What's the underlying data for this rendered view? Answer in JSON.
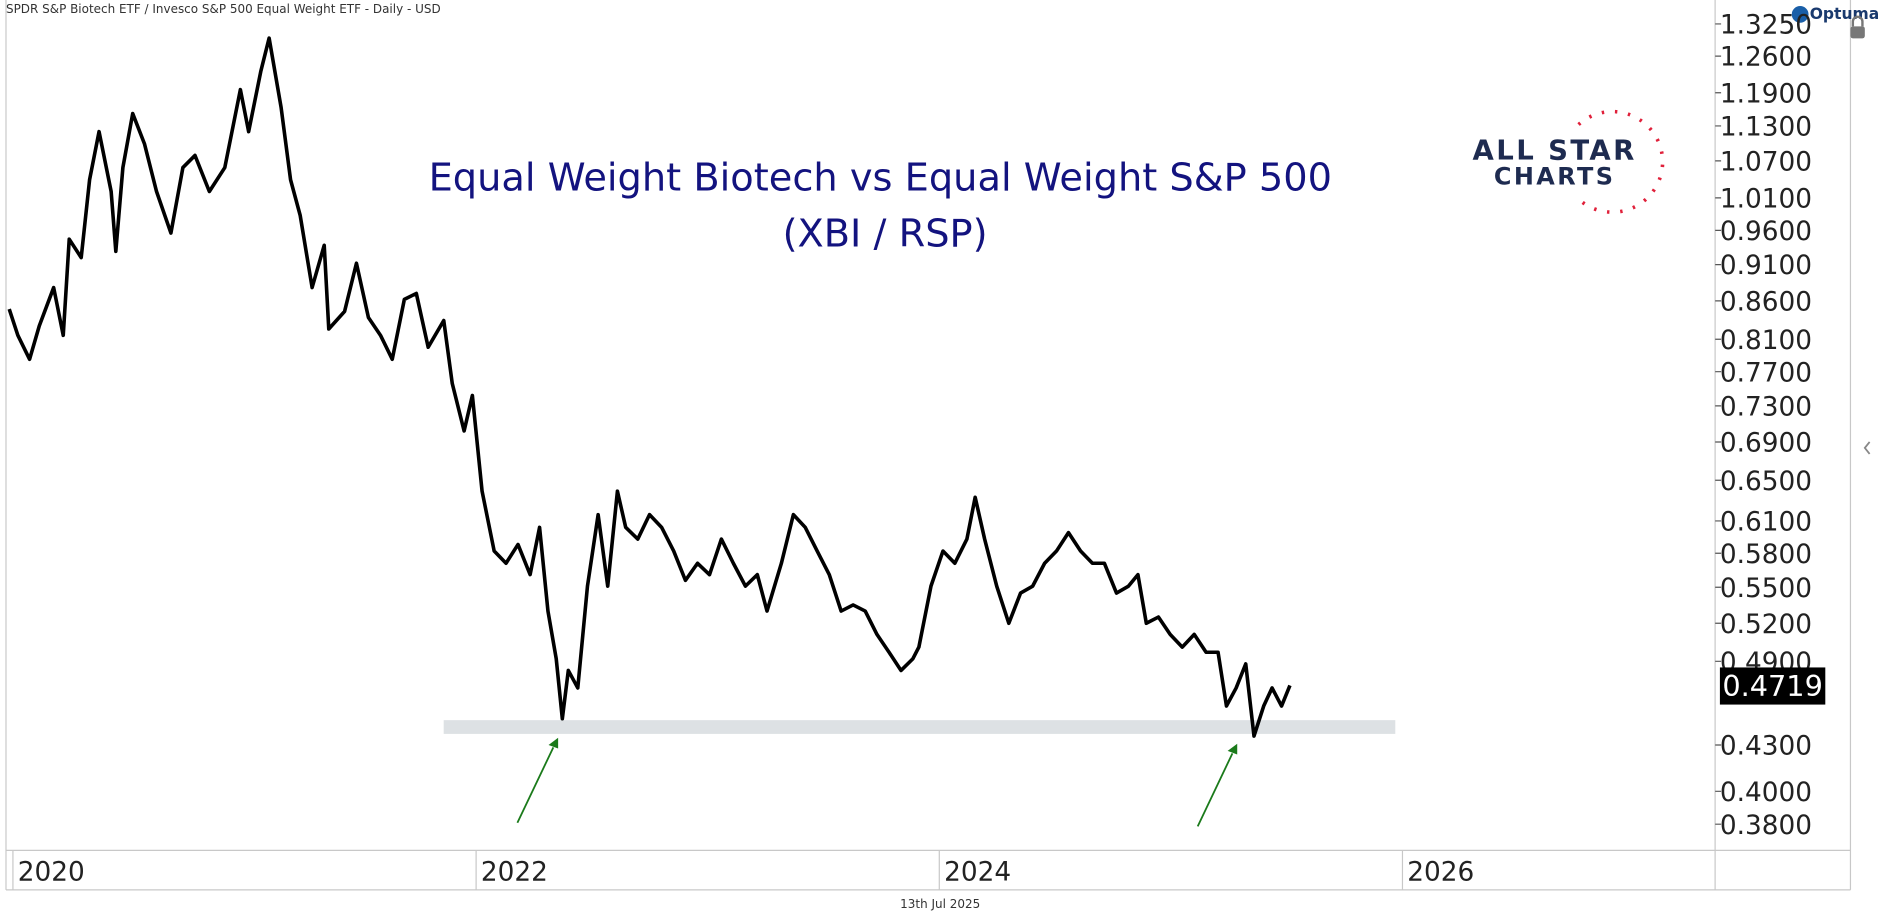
{
  "chart_data": {
    "type": "line",
    "source_text": "SPDR S&P Biotech ETF / Invesco S&P 500 Equal Weight ETF - Daily - USD",
    "brand": "Optuma",
    "title": "Equal Weight Biotech vs Equal Weight S&P 500",
    "subtitle": "(XBI / RSP)",
    "logo_lines": [
      "ALL STAR",
      "CHARTS"
    ],
    "date_label": "13th Jul 2025",
    "log_scale": true,
    "grid": false,
    "xlim": [
      2019.97,
      2027.35
    ],
    "xticks": [
      2020,
      2022,
      2024,
      2026
    ],
    "ylim": [
      0.3648,
      1.355
    ],
    "yticks": [
      {
        "value": 1.325,
        "label": "1.3250"
      },
      {
        "value": 1.26,
        "label": "1.2600"
      },
      {
        "value": 1.19,
        "label": "1.1900"
      },
      {
        "value": 1.13,
        "label": "1.1300"
      },
      {
        "value": 1.07,
        "label": "1.0700"
      },
      {
        "value": 1.01,
        "label": "1.0100"
      },
      {
        "value": 0.96,
        "label": "0.9600"
      },
      {
        "value": 0.91,
        "label": "0.9100"
      },
      {
        "value": 0.86,
        "label": "0.8600"
      },
      {
        "value": 0.81,
        "label": "0.8100"
      },
      {
        "value": 0.77,
        "label": "0.7700"
      },
      {
        "value": 0.73,
        "label": "0.7300"
      },
      {
        "value": 0.69,
        "label": "0.6900"
      },
      {
        "value": 0.65,
        "label": "0.6500"
      },
      {
        "value": 0.61,
        "label": "0.6100"
      },
      {
        "value": 0.58,
        "label": "0.5800"
      },
      {
        "value": 0.55,
        "label": "0.5500"
      },
      {
        "value": 0.52,
        "label": "0.5200"
      },
      {
        "value": 0.49,
        "label": "0.4900"
      },
      {
        "value": 0.43,
        "label": "0.4300"
      },
      {
        "value": 0.4,
        "label": "0.4000"
      },
      {
        "value": 0.38,
        "label": "0.3800"
      }
    ],
    "support_zone": {
      "x": [
        2021.86,
        2025.969
      ],
      "y": [
        0.4375,
        0.447
      ],
      "color": "#dde1e4"
    },
    "x": [
      2019.984,
      2020.021,
      2020.072,
      2020.114,
      2020.176,
      2020.217,
      2020.243,
      2020.295,
      2020.331,
      2020.372,
      2020.424,
      2020.444,
      2020.475,
      2020.517,
      2020.568,
      2020.62,
      2020.682,
      2020.734,
      2020.786,
      2020.848,
      2020.915,
      2020.982,
      2021.018,
      2021.07,
      2021.106,
      2021.158,
      2021.199,
      2021.24,
      2021.292,
      2021.344,
      2021.364,
      2021.432,
      2021.483,
      2021.535,
      2021.587,
      2021.638,
      2021.69,
      2021.742,
      2021.793,
      2021.86,
      2021.897,
      2021.948,
      2021.984,
      2022.026,
      2022.078,
      2022.129,
      2022.181,
      2022.233,
      2022.274,
      2022.31,
      2022.346,
      2022.372,
      2022.398,
      2022.439,
      2022.481,
      2022.527,
      2022.568,
      2022.61,
      2022.646,
      2022.698,
      2022.749,
      2022.801,
      2022.853,
      2022.904,
      2022.956,
      2023.008,
      2023.059,
      2023.111,
      2023.163,
      2023.214,
      2023.256,
      2023.318,
      2023.37,
      2023.421,
      2023.473,
      2023.525,
      2023.576,
      2023.628,
      2023.68,
      2023.731,
      2023.783,
      2023.835,
      2023.886,
      2023.912,
      2023.964,
      2024.016,
      2024.067,
      2024.119,
      2024.155,
      2024.196,
      2024.248,
      2024.3,
      2024.351,
      2024.403,
      2024.455,
      2024.506,
      2024.558,
      2024.61,
      2024.661,
      2024.713,
      2024.765,
      2024.817,
      2024.858,
      2024.894,
      2024.946,
      2024.997,
      2025.049,
      2025.101,
      2025.152,
      2025.204,
      2025.24,
      2025.282,
      2025.323,
      2025.359,
      2025.401,
      2025.437,
      2025.478,
      2025.514
    ],
    "series": [
      {
        "color": "#000000",
        "values": [
          0.849,
          0.815,
          0.785,
          0.827,
          0.878,
          0.815,
          0.947,
          0.92,
          1.039,
          1.12,
          1.02,
          0.929,
          1.059,
          1.152,
          1.099,
          1.02,
          0.956,
          1.059,
          1.079,
          1.02,
          1.059,
          1.196,
          1.12,
          1.23,
          1.296,
          1.163,
          1.039,
          0.983,
          0.878,
          0.938,
          0.823,
          0.846,
          0.912,
          0.838,
          0.815,
          0.785,
          0.862,
          0.87,
          0.8,
          0.834,
          0.756,
          0.702,
          0.742,
          0.639,
          0.582,
          0.571,
          0.588,
          0.561,
          0.604,
          0.53,
          0.492,
          0.448,
          0.483,
          0.47,
          0.551,
          0.616,
          0.551,
          0.639,
          0.604,
          0.593,
          0.616,
          0.604,
          0.582,
          0.556,
          0.571,
          0.561,
          0.593,
          0.571,
          0.551,
          0.561,
          0.53,
          0.571,
          0.616,
          0.604,
          0.582,
          0.561,
          0.53,
          0.535,
          0.53,
          0.511,
          0.497,
          0.483,
          0.492,
          0.501,
          0.551,
          0.582,
          0.571,
          0.593,
          0.633,
          0.593,
          0.551,
          0.52,
          0.545,
          0.551,
          0.571,
          0.582,
          0.599,
          0.582,
          0.571,
          0.571,
          0.545,
          0.551,
          0.561,
          0.52,
          0.525,
          0.511,
          0.501,
          0.511,
          0.497,
          0.497,
          0.457,
          0.47,
          0.488,
          0.436,
          0.457,
          0.47,
          0.457,
          0.4719
        ]
      }
    ]
  }
}
